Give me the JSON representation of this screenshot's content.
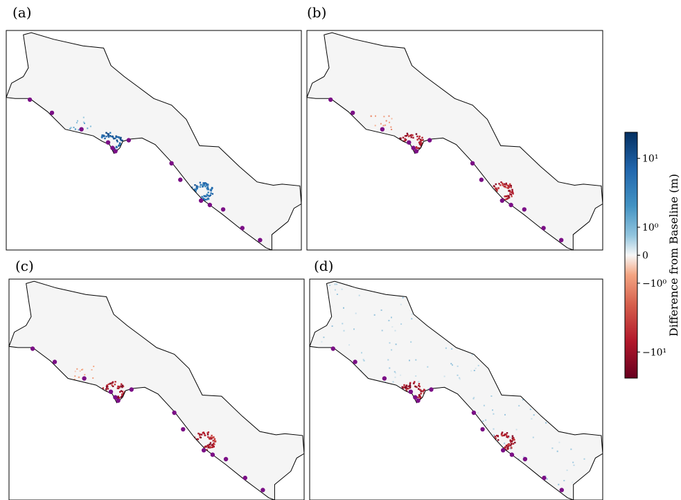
{
  "chart_data": {
    "type": "heatmap",
    "panels": [
      {
        "label": "(a)",
        "hotspots": [
          {
            "sign": 1,
            "intensity": 0.9,
            "shape": "arc"
          },
          {
            "sign": 1,
            "intensity": 0.8,
            "shape": "arc"
          },
          {
            "sign": 1,
            "intensity": 0.35,
            "shape": "speckle"
          }
        ]
      },
      {
        "label": "(b)",
        "hotspots": [
          {
            "sign": -1,
            "intensity": 0.95,
            "shape": "arc"
          },
          {
            "sign": -1,
            "intensity": 0.9,
            "shape": "arc"
          },
          {
            "sign": -1,
            "intensity": 0.3,
            "shape": "speckle"
          }
        ]
      },
      {
        "label": "(c)",
        "hotspots": [
          {
            "sign": -1,
            "intensity": 0.95,
            "shape": "arc"
          },
          {
            "sign": -1,
            "intensity": 0.9,
            "shape": "arc"
          },
          {
            "sign": -1,
            "intensity": 0.2,
            "shape": "speckle"
          }
        ]
      },
      {
        "label": "(d)",
        "hotspots": [
          {
            "sign": -1,
            "intensity": 0.95,
            "shape": "arc"
          },
          {
            "sign": -1,
            "intensity": 0.9,
            "shape": "arc"
          },
          {
            "sign": 1,
            "intensity": 0.3,
            "shape": "widespread"
          }
        ]
      }
    ],
    "colorbar": {
      "label": "Difference from Baseline (m)",
      "scale": "symlog",
      "range": [
        -20,
        20
      ],
      "ticks": [
        {
          "value": 10,
          "label": "10¹"
        },
        {
          "value": 1,
          "label": "10⁰"
        },
        {
          "value": 0,
          "label": "0"
        },
        {
          "value": -1,
          "label": "−10⁰"
        },
        {
          "value": -10,
          "label": "−10¹"
        }
      ],
      "colormap": "RdBu",
      "colors": {
        "low": "#67001f",
        "mid": "#f7f7f7",
        "high": "#053061"
      }
    },
    "markers": {
      "color": "#7b0f86",
      "count_per_panel": 12
    },
    "region_fill": "#f5f5f5",
    "outline_color": "#000000"
  }
}
